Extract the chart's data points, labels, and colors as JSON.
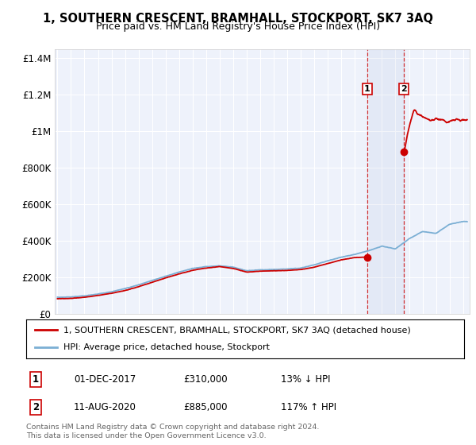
{
  "title": "1, SOUTHERN CRESCENT, BRAMHALL, STOCKPORT, SK7 3AQ",
  "subtitle": "Price paid vs. HM Land Registry's House Price Index (HPI)",
  "legend_line1": "1, SOUTHERN CRESCENT, BRAMHALL, STOCKPORT, SK7 3AQ (detached house)",
  "legend_line2": "HPI: Average price, detached house, Stockport",
  "annotation1_label": "1",
  "annotation1_date": "01-DEC-2017",
  "annotation1_price": "£310,000",
  "annotation1_hpi": "13% ↓ HPI",
  "annotation2_label": "2",
  "annotation2_date": "11-AUG-2020",
  "annotation2_price": "£885,000",
  "annotation2_hpi": "117% ↑ HPI",
  "footer": "Contains HM Land Registry data © Crown copyright and database right 2024.\nThis data is licensed under the Open Government Licence v3.0.",
  "red_color": "#cc0000",
  "blue_color": "#7bafd4",
  "point1_x": 2017.92,
  "point1_y": 310000,
  "point2_x": 2020.62,
  "point2_y": 885000,
  "ylim": [
    0,
    1450000
  ],
  "xlim": [
    1994.8,
    2025.5
  ],
  "background_plot": "#eef2fb",
  "background_fig": "#ffffff",
  "grid_color": "#ffffff",
  "hpi_x": [
    1995,
    1996,
    1997,
    1998,
    1999,
    2000,
    2001,
    2002,
    2003,
    2004,
    2005,
    2006,
    2007,
    2008,
    2009,
    2010,
    2011,
    2012,
    2013,
    2014,
    2015,
    2016,
    2017,
    2018,
    2019,
    2020,
    2021,
    2022,
    2023,
    2024,
    2025
  ],
  "hpi_y": [
    90000,
    92000,
    98000,
    108000,
    120000,
    138000,
    158000,
    182000,
    205000,
    228000,
    248000,
    258000,
    262000,
    255000,
    235000,
    240000,
    242000,
    245000,
    250000,
    268000,
    290000,
    310000,
    325000,
    345000,
    370000,
    355000,
    410000,
    450000,
    440000,
    490000,
    505000
  ],
  "red_x": [
    1995,
    1996,
    1997,
    1998,
    1999,
    2000,
    2001,
    2002,
    2003,
    2004,
    2005,
    2006,
    2007,
    2008,
    2009,
    2010,
    2011,
    2012,
    2013,
    2014,
    2015,
    2016,
    2017,
    2017.92
  ],
  "red_y": [
    82000,
    84000,
    90000,
    100000,
    112000,
    127000,
    148000,
    172000,
    196000,
    218000,
    238000,
    250000,
    258000,
    248000,
    228000,
    233000,
    235000,
    237000,
    242000,
    255000,
    275000,
    295000,
    308000,
    310000
  ],
  "red2_x": [
    2020.62,
    2020.8,
    2021.0,
    2021.2,
    2021.4,
    2021.6,
    2021.8,
    2022.0,
    2022.2,
    2022.4,
    2022.6,
    2022.8,
    2023.0,
    2023.2,
    2023.4,
    2023.6,
    2023.8,
    2024.0,
    2024.2,
    2024.5,
    2024.8,
    2025.0,
    2025.3
  ],
  "red2_y": [
    885000,
    950000,
    1020000,
    1080000,
    1120000,
    1100000,
    1090000,
    1080000,
    1070000,
    1065000,
    1055000,
    1060000,
    1070000,
    1060000,
    1065000,
    1055000,
    1048000,
    1055000,
    1060000,
    1065000,
    1058000,
    1060000,
    1062000
  ]
}
